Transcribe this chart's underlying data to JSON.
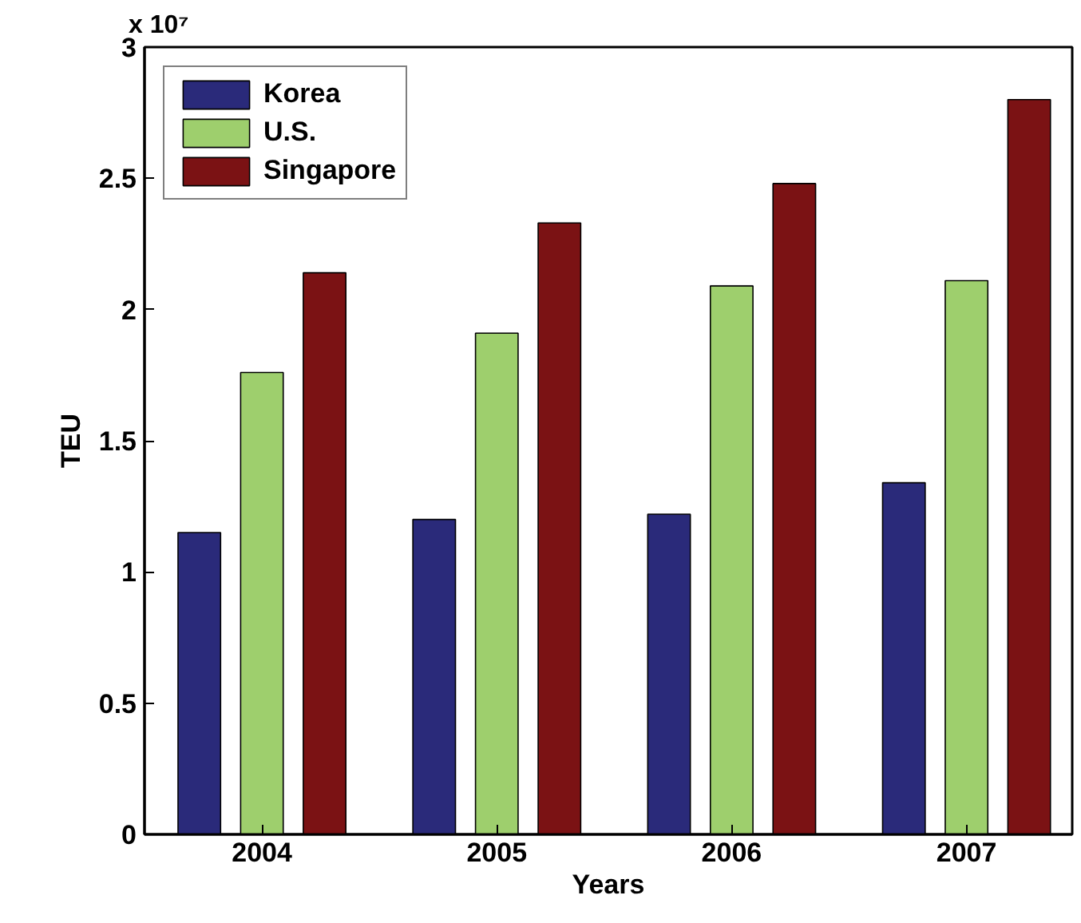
{
  "chart_data": {
    "type": "bar",
    "xlabel": "Years",
    "ylabel": "TEU",
    "annotations": [
      "x 10⁷"
    ],
    "categories": [
      "2004",
      "2005",
      "2006",
      "2007"
    ],
    "series": [
      {
        "name": "Korea",
        "color": "#2a2a7a",
        "values": [
          1.15,
          1.2,
          1.22,
          1.34
        ]
      },
      {
        "name": "U.S.",
        "color": "#9ecf6d",
        "values": [
          1.76,
          1.91,
          2.09,
          2.11
        ]
      },
      {
        "name": "Singapore",
        "color": "#7b1214",
        "values": [
          2.14,
          2.33,
          2.48,
          2.8
        ]
      }
    ],
    "ylim": [
      0,
      3
    ],
    "yticks": [
      0,
      0.5,
      1,
      1.5,
      2,
      2.5,
      3
    ],
    "grid": false,
    "legend": "top left"
  }
}
